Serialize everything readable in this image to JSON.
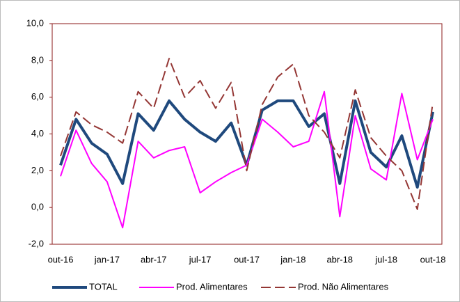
{
  "chart_data": {
    "type": "line",
    "categories": [
      "out-16",
      null,
      null,
      "jan-17",
      null,
      null,
      "abr-17",
      null,
      null,
      "jul-17",
      null,
      null,
      "out-17",
      null,
      null,
      "jan-18",
      null,
      null,
      "abr-18",
      null,
      null,
      "jul-18",
      null,
      null,
      "out-18"
    ],
    "series": [
      {
        "name": "TOTAL",
        "color": "#1f497d",
        "dashed": false,
        "values": [
          2.3,
          4.8,
          3.5,
          2.9,
          1.3,
          5.1,
          4.2,
          5.8,
          4.8,
          4.1,
          3.6,
          4.6,
          2.3,
          5.3,
          5.8,
          5.8,
          4.4,
          5.1,
          1.3,
          5.8,
          3.0,
          2.2,
          3.9,
          1.1,
          5.2
        ]
      },
      {
        "name": "Prod. Alimentares",
        "color": "#ff00ff",
        "dashed": false,
        "values": [
          1.7,
          4.2,
          2.4,
          1.4,
          -1.1,
          3.6,
          2.7,
          3.1,
          3.3,
          0.8,
          1.4,
          1.9,
          2.3,
          4.8,
          4.1,
          3.3,
          3.6,
          6.3,
          -0.5,
          5.0,
          2.1,
          1.5,
          6.2,
          2.6,
          4.8
        ]
      },
      {
        "name": "Prod. Não Alimentares",
        "color": "#943634",
        "dashed": true,
        "values": [
          2.8,
          5.2,
          4.5,
          4.1,
          3.5,
          6.3,
          5.4,
          8.1,
          6.0,
          6.9,
          5.4,
          6.8,
          2.0,
          5.6,
          7.1,
          7.8,
          5.0,
          4.1,
          2.7,
          6.4,
          3.8,
          2.8,
          2.0,
          -0.1,
          5.7
        ]
      }
    ],
    "ylim": [
      -2,
      10
    ],
    "yticks": [
      {
        "value": -2,
        "label": "-2,0"
      },
      {
        "value": 0,
        "label": "0,0"
      },
      {
        "value": 2,
        "label": "2,0"
      },
      {
        "value": 4,
        "label": "4,0"
      },
      {
        "value": 6,
        "label": "6,0"
      },
      {
        "value": 8,
        "label": "8,0"
      },
      {
        "value": 10,
        "label": "10,0"
      }
    ],
    "legend": "bottom"
  }
}
